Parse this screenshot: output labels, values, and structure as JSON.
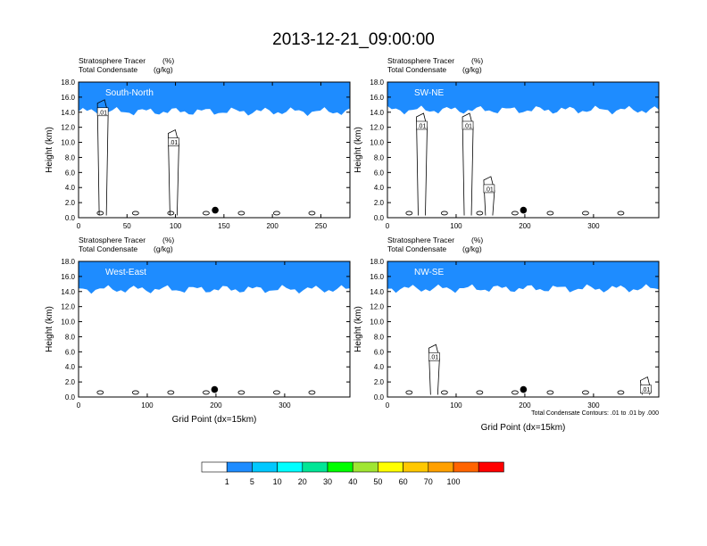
{
  "title": "2013-12-21_09:00:00",
  "colorbar": {
    "colors": [
      "#ffffff",
      "#1e8cff",
      "#00c8ff",
      "#00ffff",
      "#00e696",
      "#00ff00",
      "#a0e632",
      "#ffff00",
      "#ffc800",
      "#ffa000",
      "#ff6400",
      "#ff0000"
    ],
    "labels": [
      "1",
      "5",
      "10",
      "20",
      "30",
      "40",
      "50",
      "60",
      "70",
      "100"
    ]
  },
  "chart_data": [
    {
      "type": "heatmap",
      "panel": "top-left",
      "subtitle_left": "Stratosphere Tracer",
      "subtitle_left_unit": "(%)",
      "subtitle_left2": "Total Condensate",
      "subtitle_left2_unit": "(g/kg)",
      "cross_section": "South-North",
      "xlabel": "",
      "ylabel": "Height (km)",
      "xlim": [
        0,
        280
      ],
      "ylim": [
        0,
        18
      ],
      "xticks": [
        "0",
        "50",
        "100",
        "150",
        "200",
        "250"
      ],
      "xtick_values": [
        0,
        50,
        100,
        150,
        200,
        250
      ],
      "yticks": [
        "0.0",
        "2.0",
        "4.0",
        "6.0",
        "8.0",
        "10.0",
        "12.0",
        "14.0",
        "16.0",
        "18.0"
      ],
      "marker": {
        "x": 141,
        "y": 1.0
      },
      "contour_labels": [
        {
          "text": ".01",
          "x": 25,
          "y": 14.0
        },
        {
          "text": ".01",
          "x": 98,
          "y": 10.0
        }
      ],
      "tracer_base_km": 14.8
    },
    {
      "type": "heatmap",
      "panel": "top-right",
      "subtitle_left": "Stratosphere Tracer",
      "subtitle_left_unit": "(%)",
      "subtitle_left2": "Total Condensate",
      "subtitle_left2_unit": "(g/kg)",
      "cross_section": "SW-NE",
      "xlabel": "",
      "ylabel": "Height (km)",
      "xlim": [
        0,
        395
      ],
      "ylim": [
        0,
        18
      ],
      "xticks": [
        "0",
        "100",
        "200",
        "300"
      ],
      "xtick_values": [
        0,
        100,
        200,
        300
      ],
      "yticks": [
        "0.0",
        "2.0",
        "4.0",
        "6.0",
        "8.0",
        "10.0",
        "12.0",
        "14.0",
        "16.0",
        "18.0"
      ],
      "marker": {
        "x": 198,
        "y": 1.0
      },
      "contour_labels": [
        {
          "text": ".01",
          "x": 50,
          "y": 12.2
        },
        {
          "text": ".01",
          "x": 117,
          "y": 12.2
        },
        {
          "text": ".01",
          "x": 148,
          "y": 3.8
        }
      ],
      "tracer_base_km": 15.0
    },
    {
      "type": "heatmap",
      "panel": "bottom-left",
      "subtitle_left": "Stratosphere Tracer",
      "subtitle_left_unit": "(%)",
      "subtitle_left2": "Total Condensate",
      "subtitle_left2_unit": "(g/kg)",
      "cross_section": "West-East",
      "xlabel": "Grid Point (dx=15km)",
      "ylabel": "Height (km)",
      "xlim": [
        0,
        395
      ],
      "ylim": [
        0,
        18
      ],
      "xticks": [
        "0",
        "100",
        "200",
        "300"
      ],
      "xtick_values": [
        0,
        100,
        200,
        300
      ],
      "yticks": [
        "0.0",
        "2.0",
        "4.0",
        "6.0",
        "8.0",
        "10.0",
        "12.0",
        "14.0",
        "16.0",
        "18.0"
      ],
      "marker": {
        "x": 198,
        "y": 1.0
      },
      "contour_labels": [],
      "tracer_base_km": 15.0
    },
    {
      "type": "heatmap",
      "panel": "bottom-right",
      "subtitle_left": "Stratosphere Tracer",
      "subtitle_left_unit": "(%)",
      "subtitle_left2": "Total Condensate",
      "subtitle_left2_unit": "(g/kg)",
      "cross_section": "NW-SE",
      "xlabel": "Grid Point (dx=15km)",
      "ylabel": "Height (km)",
      "xlim": [
        0,
        395
      ],
      "ylim": [
        0,
        18
      ],
      "xticks": [
        "0",
        "100",
        "200",
        "300"
      ],
      "xtick_values": [
        0,
        100,
        200,
        300
      ],
      "yticks": [
        "0.0",
        "2.0",
        "4.0",
        "6.0",
        "8.0",
        "10.0",
        "12.0",
        "14.0",
        "16.0",
        "18.0"
      ],
      "marker": {
        "x": 198,
        "y": 1.0
      },
      "contour_labels": [
        {
          "text": ".01",
          "x": 68,
          "y": 5.3
        },
        {
          "text": ".01",
          "x": 376,
          "y": 1.0
        }
      ],
      "contour_note": "Total Condensate Contours: .01 to .01 by .000",
      "tracer_base_km": 15.1
    }
  ]
}
